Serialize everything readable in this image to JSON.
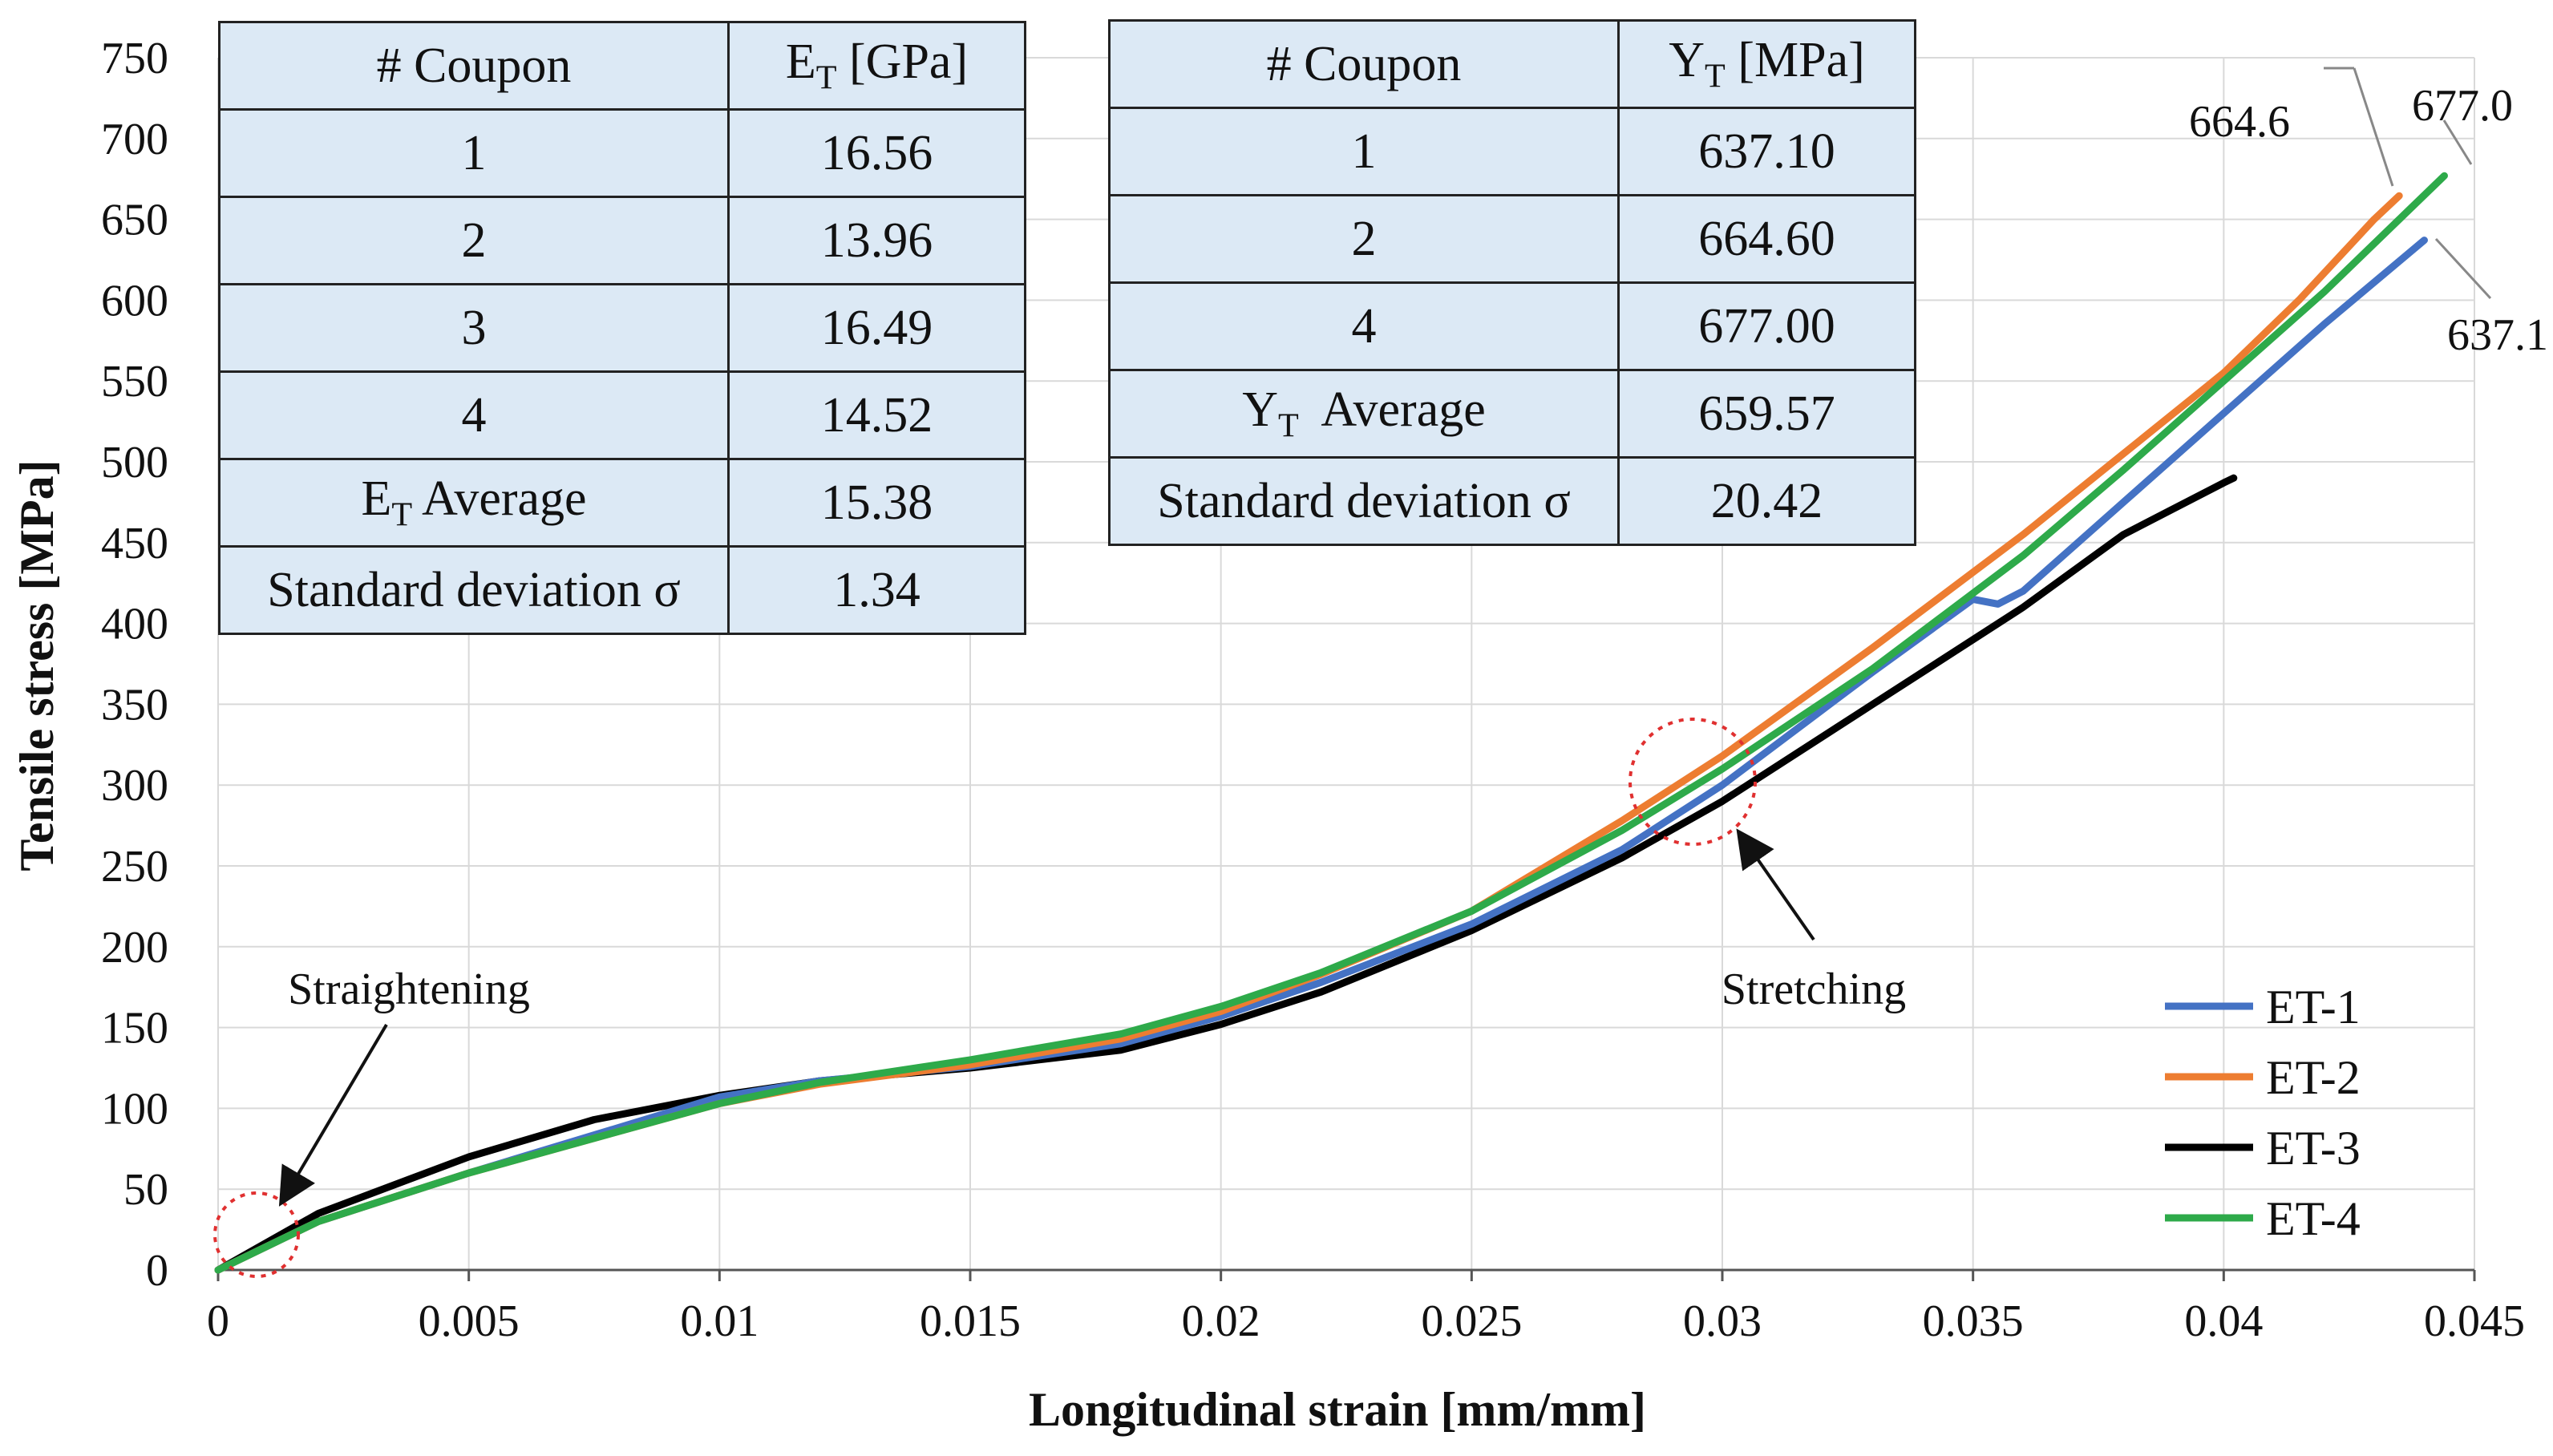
{
  "chart_data": {
    "type": "line",
    "xlabel": "Longitudinal strain [mm/mm]",
    "ylabel": "Tensile stress [MPa]",
    "xlim": [
      0,
      0.045
    ],
    "ylim": [
      0,
      750
    ],
    "x_ticks": [
      "0",
      "0.005",
      "0.01",
      "0.015",
      "0.02",
      "0.025",
      "0.03",
      "0.035",
      "0.04",
      "0.045"
    ],
    "y_ticks": [
      "0",
      "50",
      "100",
      "150",
      "200",
      "250",
      "300",
      "350",
      "400",
      "450",
      "500",
      "550",
      "600",
      "650",
      "700",
      "750"
    ],
    "grid": true,
    "legend_position": "bottom-right",
    "series": [
      {
        "name": "ET-1",
        "color": "#4472C4",
        "x": [
          0,
          0.002,
          0.005,
          0.01,
          0.012,
          0.015,
          0.018,
          0.02,
          0.022,
          0.025,
          0.028,
          0.03,
          0.033,
          0.035,
          0.0355,
          0.036,
          0.038,
          0.04,
          0.042,
          0.044
        ],
        "y": [
          0,
          30,
          60,
          107,
          117,
          126,
          140,
          157,
          178,
          214,
          260,
          300,
          370,
          415,
          412,
          420,
          475,
          530,
          585,
          637.1
        ]
      },
      {
        "name": "ET-2",
        "color": "#ED7D31",
        "x": [
          0,
          0.002,
          0.005,
          0.01,
          0.012,
          0.015,
          0.018,
          0.02,
          0.022,
          0.025,
          0.028,
          0.03,
          0.033,
          0.036,
          0.038,
          0.04,
          0.0415,
          0.043,
          0.0435
        ],
        "y": [
          0,
          30,
          60,
          103,
          115,
          127,
          143,
          160,
          183,
          222,
          278,
          318,
          385,
          455,
          505,
          555,
          600,
          650,
          664.6
        ]
      },
      {
        "name": "ET-3",
        "color": "#000000",
        "x": [
          0,
          0.002,
          0.005,
          0.0075,
          0.01,
          0.012,
          0.015,
          0.018,
          0.02,
          0.022,
          0.025,
          0.028,
          0.03,
          0.033,
          0.036,
          0.038,
          0.04,
          0.0402
        ],
        "y": [
          0,
          35,
          70,
          93,
          108,
          117,
          125,
          136,
          152,
          172,
          210,
          255,
          290,
          350,
          410,
          455,
          487,
          490
        ]
      },
      {
        "name": "ET-4",
        "color": "#2EAA4A",
        "x": [
          0,
          0.002,
          0.005,
          0.01,
          0.012,
          0.015,
          0.018,
          0.02,
          0.022,
          0.025,
          0.028,
          0.03,
          0.033,
          0.036,
          0.038,
          0.04,
          0.042,
          0.0444
        ],
        "y": [
          0,
          30,
          60,
          103,
          116,
          130,
          146,
          163,
          184,
          222,
          272,
          310,
          372,
          442,
          495,
          550,
          605,
          677.0
        ]
      }
    ],
    "annotations": {
      "straightening": "Straightening",
      "stretching": "Stretching",
      "peak_et1": "637.1",
      "peak_et2": "664.6",
      "peak_et4": "677.0"
    }
  },
  "table_modulus": {
    "header": [
      "# Coupon",
      "E",
      "T",
      " [GPa]"
    ],
    "rows": [
      [
        "1",
        "16.56"
      ],
      [
        "2",
        "13.96"
      ],
      [
        "3",
        "16.49"
      ],
      [
        "4",
        "14.52"
      ]
    ],
    "avg_label_main": "E",
    "avg_label_sub": "T",
    "avg_label_rest": " Average",
    "avg_value": "15.38",
    "std_label": "Standard deviation σ",
    "std_value": "1.34"
  },
  "table_strength": {
    "header": [
      "# Coupon",
      "Y",
      "T",
      " [MPa]"
    ],
    "rows": [
      [
        "1",
        "637.10"
      ],
      [
        "2",
        "664.60"
      ],
      [
        "4",
        "677.00"
      ]
    ],
    "avg_label_main": "Y",
    "avg_label_sub": "T",
    "avg_label_rest": "  Average",
    "avg_value": "659.57",
    "std_label": "Standard deviation σ",
    "std_value": "20.42"
  }
}
